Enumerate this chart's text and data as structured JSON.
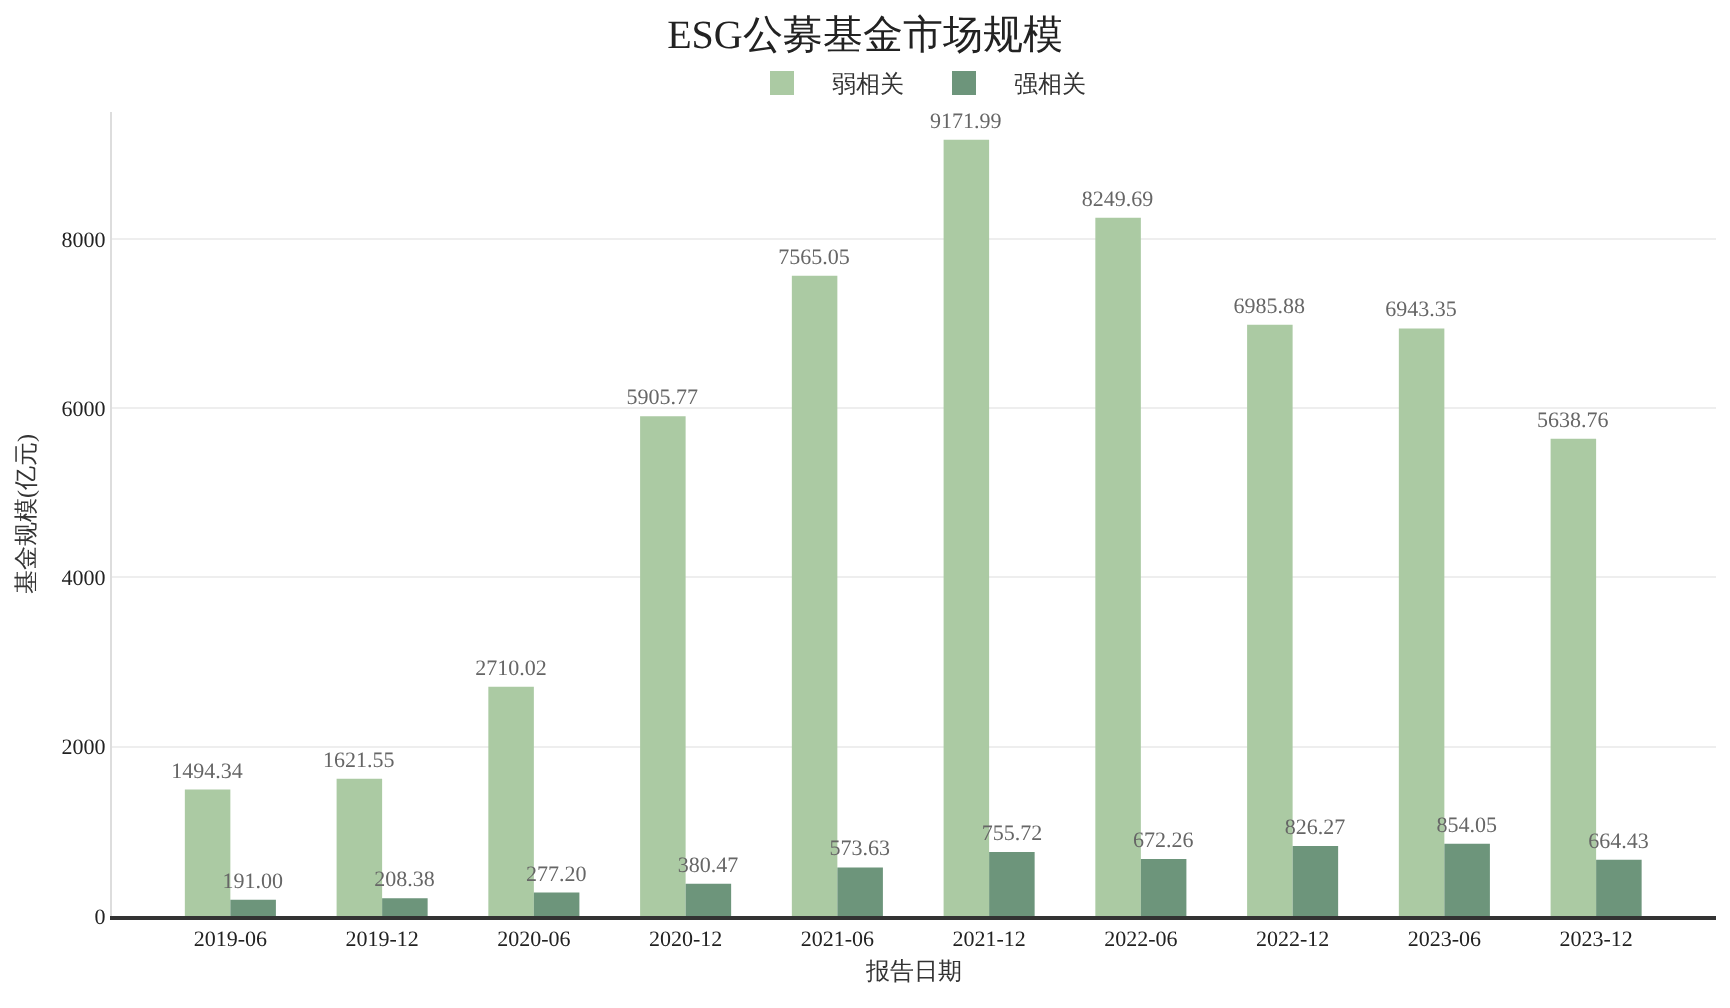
{
  "chart_data": {
    "type": "bar",
    "title": "ESG公募基金市场规模",
    "xlabel": "报告日期",
    "ylabel": "基金规模(亿元)",
    "categories": [
      "2019-06",
      "2019-12",
      "2020-06",
      "2020-12",
      "2021-06",
      "2021-12",
      "2022-06",
      "2022-12",
      "2023-06",
      "2023-12"
    ],
    "series": [
      {
        "name": "弱相关",
        "color": "#abcaa3",
        "values": [
          1494.34,
          1621.55,
          2710.02,
          5905.77,
          7565.05,
          9171.99,
          8249.69,
          6985.88,
          6943.35,
          5638.76
        ],
        "value_labels": [
          "1494.34",
          "1621.55",
          "2710.02",
          "5905.77",
          "7565.05",
          "9171.99",
          "8249.69",
          "6985.88",
          "6943.35",
          "5638.76"
        ]
      },
      {
        "name": "强相关",
        "color": "#6d957b",
        "values": [
          191.0,
          208.38,
          277.2,
          380.47,
          573.63,
          755.72,
          672.26,
          826.27,
          854.05,
          664.43
        ],
        "value_labels": [
          "191.00",
          "208.38",
          "277.20",
          "380.47",
          "573.63",
          "755.72",
          "672.26",
          "826.27",
          "854.05",
          "664.43"
        ]
      }
    ],
    "ylim": [
      0,
      9500
    ],
    "yticks": [
      0,
      2000,
      4000,
      6000,
      8000
    ],
    "grid": "y",
    "legend": "top"
  }
}
